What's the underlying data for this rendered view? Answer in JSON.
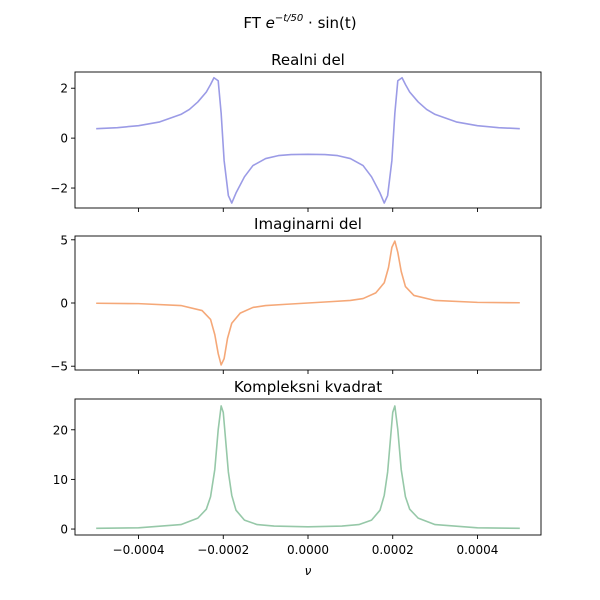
{
  "figure": {
    "suptitle": {
      "prefix": "FT ",
      "base": "e",
      "exponent": "−t/50",
      "suffix": " · sin(t)"
    },
    "xlabel": "ν",
    "xlim": [
      -0.00055,
      0.00055
    ],
    "xticks": [
      -0.0004,
      -0.0002,
      0.0,
      0.0002,
      0.0004
    ],
    "xtick_labels": [
      "−0.0004",
      "−0.0002",
      "0.0000",
      "0.0002",
      "0.0004"
    ]
  },
  "chart_data": [
    {
      "type": "line",
      "title": "Realni del",
      "color": "#9b9be6",
      "ylim": [
        -2.8,
        2.65
      ],
      "yticks": [
        -2,
        0,
        2
      ],
      "ytick_labels": [
        "−2",
        "0",
        "2"
      ],
      "x": [
        -0.0005,
        -0.00045,
        -0.0004,
        -0.00035,
        -0.0003,
        -0.00028,
        -0.00026,
        -0.00024,
        -0.00023,
        -0.000222,
        -0.000212,
        -0.000205,
        -0.000198,
        -0.000188,
        -0.00018,
        -0.00017,
        -0.00015,
        -0.00013,
        -0.0001,
        -7e-05,
        -4e-05,
        0.0,
        4e-05,
        7e-05,
        0.0001,
        0.00013,
        0.00015,
        0.00017,
        0.00018,
        0.000188,
        0.000198,
        0.000205,
        0.000212,
        0.000222,
        0.00023,
        0.00024,
        0.00026,
        0.00028,
        0.0003,
        0.00035,
        0.0004,
        0.00045,
        0.0005
      ],
      "y": [
        0.38,
        0.42,
        0.5,
        0.65,
        0.95,
        1.15,
        1.45,
        1.85,
        2.15,
        2.42,
        2.3,
        1.0,
        -0.9,
        -2.3,
        -2.6,
        -2.2,
        -1.55,
        -1.1,
        -0.82,
        -0.7,
        -0.66,
        -0.65,
        -0.66,
        -0.7,
        -0.82,
        -1.1,
        -1.55,
        -2.2,
        -2.6,
        -2.3,
        -0.9,
        1.0,
        2.3,
        2.42,
        2.15,
        1.85,
        1.45,
        1.15,
        0.95,
        0.65,
        0.5,
        0.42,
        0.38
      ]
    },
    {
      "type": "line",
      "title": "Imaginarni del",
      "color": "#f5a878",
      "ylim": [
        -5.3,
        5.3
      ],
      "yticks": [
        -5,
        0,
        5
      ],
      "ytick_labels": [
        "−5",
        "0",
        "5"
      ],
      "x": [
        -0.0005,
        -0.0004,
        -0.0003,
        -0.00025,
        -0.00023,
        -0.00022,
        -0.000212,
        -0.000205,
        -0.000198,
        -0.00019,
        -0.00018,
        -0.00016,
        -0.00013,
        -0.0001,
        -5e-05,
        0.0,
        5e-05,
        0.0001,
        0.00013,
        0.00016,
        0.00018,
        0.00019,
        0.000198,
        0.000205,
        0.000212,
        0.00022,
        0.00023,
        0.00025,
        0.0003,
        0.0004,
        0.0005
      ],
      "y": [
        -0.02,
        -0.05,
        -0.2,
        -0.6,
        -1.3,
        -2.5,
        -4.0,
        -4.9,
        -4.4,
        -2.8,
        -1.6,
        -0.8,
        -0.35,
        -0.2,
        -0.1,
        0.0,
        0.1,
        0.2,
        0.35,
        0.8,
        1.6,
        2.8,
        4.4,
        4.9,
        4.0,
        2.5,
        1.3,
        0.6,
        0.2,
        0.05,
        0.02
      ]
    },
    {
      "type": "line",
      "title": "Kompleksni kvadrat",
      "color": "#96c8a8",
      "ylim": [
        -1.2,
        26.2
      ],
      "yticks": [
        0,
        10,
        20
      ],
      "ytick_labels": [
        "0",
        "10",
        "20"
      ],
      "x": [
        -0.0005,
        -0.0004,
        -0.0003,
        -0.00026,
        -0.00024,
        -0.00023,
        -0.00022,
        -0.000212,
        -0.000205,
        -0.0002,
        -0.000195,
        -0.000188,
        -0.00018,
        -0.00017,
        -0.00015,
        -0.00012,
        -8e-05,
        0.0,
        8e-05,
        0.00012,
        0.00015,
        0.00017,
        0.00018,
        0.000188,
        0.000195,
        0.0002,
        0.000205,
        0.000212,
        0.00022,
        0.00023,
        0.00024,
        0.00026,
        0.0003,
        0.0004,
        0.0005
      ],
      "y": [
        0.15,
        0.25,
        0.9,
        2.2,
        4.0,
        6.5,
        12.0,
        20.0,
        24.8,
        23.5,
        18.5,
        11.5,
        6.8,
        3.8,
        1.8,
        0.9,
        0.6,
        0.45,
        0.6,
        0.9,
        1.8,
        3.8,
        6.8,
        11.5,
        18.5,
        23.5,
        24.8,
        20.0,
        12.0,
        6.5,
        4.0,
        2.2,
        0.9,
        0.25,
        0.15
      ]
    }
  ]
}
